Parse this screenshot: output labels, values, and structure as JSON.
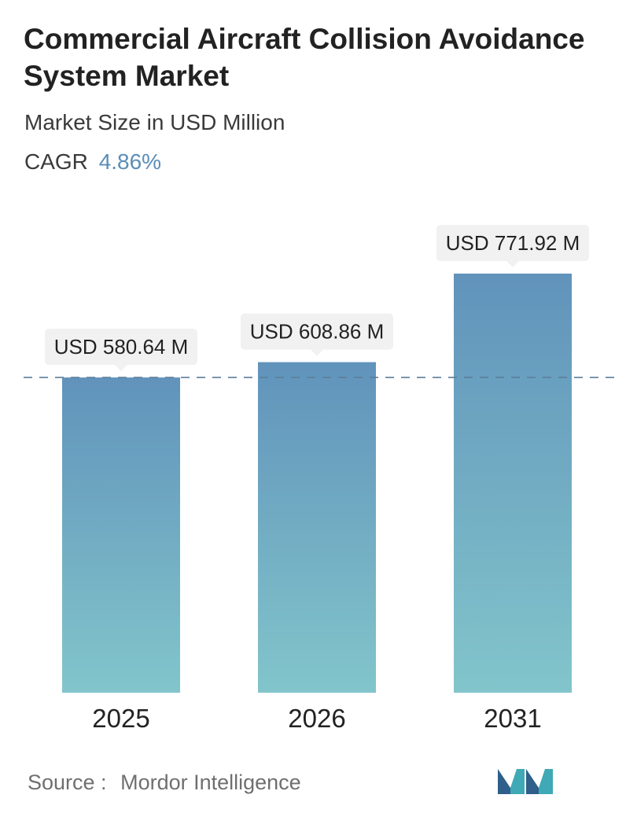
{
  "header": {
    "title": "Commercial Aircraft Collision Avoidance System Market",
    "subtitle": "Market Size in USD Million",
    "cagr_label": "CAGR",
    "cagr_value": "4.86%"
  },
  "colors": {
    "cagr_accent": "#5b8db8",
    "bar_top": "#6193bb",
    "bar_bottom": "#82c5cb",
    "dashed_line": "#5c7f9a",
    "callout_bg": "#f1f1f1",
    "logo_dark": "#2f5f8a",
    "logo_light": "#3fa9b5"
  },
  "chart_data": {
    "type": "bar",
    "categories": [
      "2025",
      "2026",
      "2031"
    ],
    "values": [
      580.64,
      608.86,
      771.92
    ],
    "data_labels": [
      "USD 580.64 M",
      "USD 608.86 M",
      "USD 771.92 M"
    ],
    "reference_line": 580.64,
    "grid": false,
    "legend": "none",
    "xlabel": "",
    "ylabel": ""
  },
  "footer": {
    "source_label": "Source :",
    "source_name": "Mordor Intelligence",
    "logo_icon": "mordor-intelligence-logo-icon"
  }
}
